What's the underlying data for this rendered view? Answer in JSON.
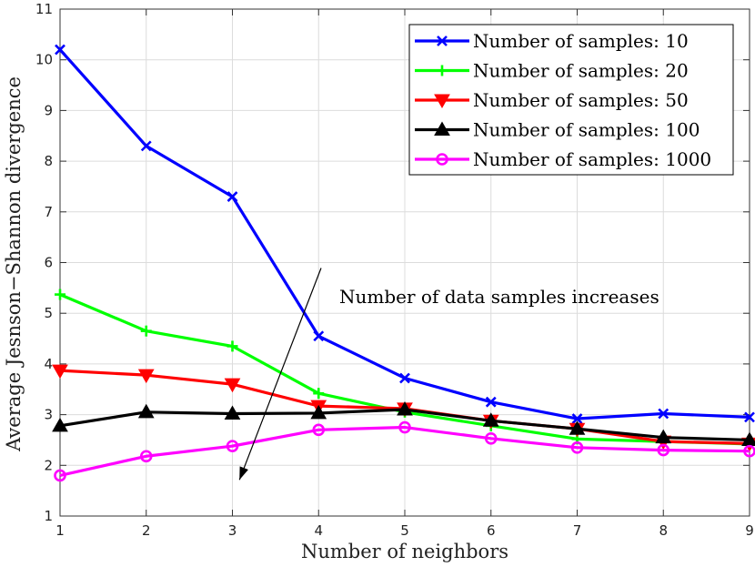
{
  "chart_data": {
    "type": "line",
    "title": "",
    "xlabel": "Number of neighbors",
    "ylabel": "Average Jesnson−Shannon divergence",
    "x": [
      1,
      2,
      3,
      4,
      5,
      6,
      7,
      8,
      9
    ],
    "xlim": [
      1,
      9
    ],
    "ylim": [
      1,
      11
    ],
    "xticks": [
      1,
      2,
      3,
      4,
      5,
      6,
      7,
      8,
      9
    ],
    "yticks": [
      1,
      2,
      3,
      4,
      5,
      6,
      7,
      8,
      9,
      10,
      11
    ],
    "grid": true,
    "legend_position": "top-right",
    "series": [
      {
        "name": "Number of samples:  10",
        "color": "#0000ff",
        "marker": "x",
        "values": [
          10.2,
          8.3,
          7.3,
          4.55,
          3.72,
          3.25,
          2.92,
          3.02,
          2.95
        ]
      },
      {
        "name": "Number of samples:  20",
        "color": "#00ff00",
        "marker": "plus",
        "values": [
          5.37,
          4.65,
          4.35,
          3.42,
          3.05,
          2.78,
          2.52,
          2.47,
          2.42
        ]
      },
      {
        "name": "Number of samples:  50",
        "color": "#ff0000",
        "marker": "triangle-down",
        "values": [
          3.87,
          3.78,
          3.6,
          3.17,
          3.12,
          2.88,
          2.72,
          2.47,
          2.43
        ]
      },
      {
        "name": "Number of samples:  100",
        "color": "#000000",
        "marker": "triangle-up",
        "values": [
          2.78,
          3.05,
          3.02,
          3.03,
          3.1,
          2.88,
          2.72,
          2.55,
          2.5
        ]
      },
      {
        "name": "Number of samples:  1000",
        "color": "#ff00ff",
        "marker": "circle",
        "values": [
          1.8,
          2.18,
          2.38,
          2.7,
          2.75,
          2.53,
          2.35,
          2.3,
          2.28
        ]
      }
    ],
    "annotation": {
      "text": "Number of data samples increases",
      "arrow_from": [
        5.0,
        6.0
      ],
      "arrow_to": [
        3.05,
        1.75
      ]
    }
  }
}
